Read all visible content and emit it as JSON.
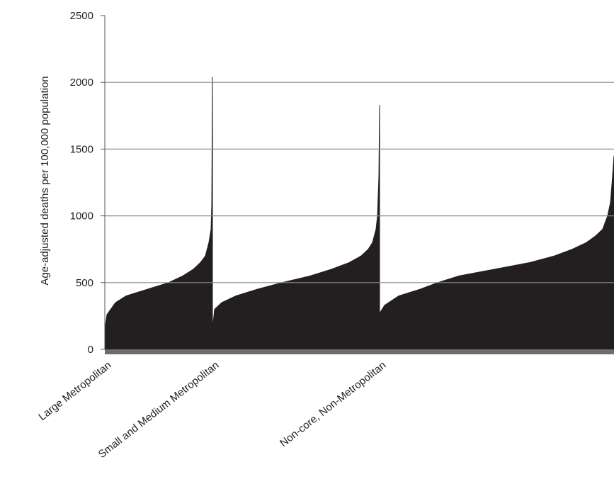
{
  "chart_data": {
    "type": "area",
    "y_label": "Age-adjusted deaths per 100,000 population",
    "xlim": [
      0,
      720
    ],
    "ylim": [
      0,
      2500
    ],
    "yticks": [
      0,
      500,
      1000,
      1500,
      2000,
      2500
    ],
    "grid": true,
    "series": [
      {
        "name": "Large Metropolitan",
        "color": "#231f20",
        "x": [
          0,
          3,
          15,
          30,
          60,
          90,
          110,
          125,
          135,
          142,
          147,
          150,
          151,
          152
        ],
        "values": [
          150,
          260,
          350,
          400,
          450,
          500,
          550,
          600,
          650,
          700,
          800,
          900,
          1080,
          2040
        ]
      },
      {
        "name": "Small and Medium Metropolitan",
        "color": "#231f20",
        "x": [
          152,
          155,
          165,
          185,
          215,
          250,
          290,
          320,
          345,
          362,
          372,
          378,
          383,
          385,
          387,
          388
        ],
        "values": [
          150,
          300,
          350,
          400,
          450,
          500,
          550,
          600,
          650,
          700,
          750,
          800,
          900,
          1000,
          1300,
          1830
        ]
      },
      {
        "name": "Non-core, Non-Metropolitan",
        "color": "#231f20",
        "x": [
          388,
          395,
          415,
          445,
          470,
          500,
          550,
          600,
          635,
          660,
          680,
          693,
          703,
          710,
          714,
          717,
          719
        ],
        "values": [
          270,
          330,
          400,
          450,
          500,
          550,
          600,
          650,
          700,
          750,
          800,
          850,
          900,
          1000,
          1100,
          1300,
          1450
        ]
      }
    ]
  }
}
